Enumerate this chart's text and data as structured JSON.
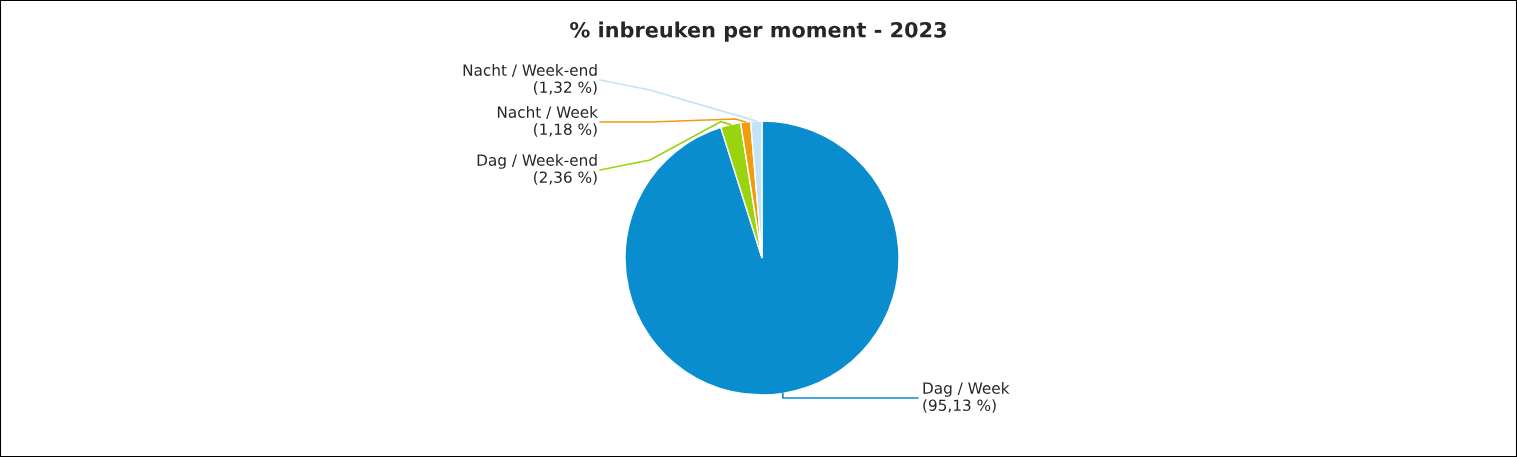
{
  "chart_data": {
    "type": "pie",
    "title": "% inbreuken per moment - 2023",
    "categories": [
      "Dag / Week",
      "Dag / Week-end",
      "Nacht / Week",
      "Nacht / Week-end"
    ],
    "values": [
      95.13,
      2.36,
      1.18,
      1.32
    ],
    "value_labels": [
      "(95,13 %)",
      "(2,36 %)",
      "(1,18 %)",
      "(1,32 %)"
    ],
    "colors": [
      "#0a8dcf",
      "#9ad40f",
      "#f29b11",
      "#c3e3f7"
    ],
    "legend": false
  }
}
